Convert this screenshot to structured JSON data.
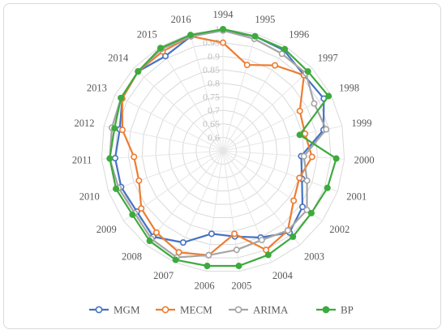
{
  "chart_data": {
    "type": "radar",
    "categories": [
      "1994",
      "1995",
      "1996",
      "1997",
      "1998",
      "1999",
      "2000",
      "2001",
      "2002",
      "2003",
      "2004",
      "2005",
      "2006",
      "2007",
      "2008",
      "2009",
      "2010",
      "2011",
      "2012",
      "2013",
      "2014",
      "2015",
      "2016"
    ],
    "r_ticks": [
      "0.6",
      "0.65",
      "0.7",
      "0.75",
      "0.8",
      "0.85",
      "0.9",
      "0.95",
      "1"
    ],
    "r_range": [
      0.55,
      1.0
    ],
    "grid": true,
    "legend_position": "bottom",
    "series": [
      {
        "name": "MGM",
        "color": "#4472c4",
        "marker": "hollow",
        "values": [
          0.995,
          0.99,
          0.985,
          0.96,
          0.97,
          0.93,
          0.84,
          0.86,
          0.91,
          0.94,
          0.9,
          0.87,
          0.86,
          0.92,
          0.96,
          0.94,
          0.95,
          0.95,
          0.94,
          0.97,
          0.98,
          0.96,
          0.99
        ]
      },
      {
        "name": "MECM",
        "color": "#ed7d31",
        "marker": "hollow",
        "values": [
          0.95,
          0.88,
          0.92,
          0.96,
          0.87,
          0.86,
          0.88,
          0.85,
          0.87,
          0.93,
          0.95,
          0.86,
          0.94,
          0.96,
          0.94,
          0.92,
          0.88,
          0.88,
          0.93,
          0.97,
          0.98,
          0.98,
          0.99
        ]
      },
      {
        "name": "ARIMA",
        "color": "#a5a5a5",
        "marker": "hollow",
        "values": [
          0.995,
          0.98,
          0.97,
          0.97,
          0.93,
          0.94,
          0.85,
          0.88,
          0.93,
          0.93,
          0.91,
          0.92,
          0.94,
          0.98,
          0.97,
          0.95,
          0.96,
          0.97,
          0.97,
          0.975,
          0.98,
          0.99,
          0.99
        ]
      },
      {
        "name": "BP",
        "color": "#3daa3d",
        "marker": "filled",
        "values": [
          1.0,
          0.99,
          0.99,
          0.98,
          0.99,
          0.84,
          0.97,
          0.96,
          0.95,
          0.96,
          0.97,
          0.98,
          0.98,
          0.99,
          0.98,
          0.96,
          0.97,
          0.97,
          0.96,
          0.975,
          0.98,
          0.995,
          0.995
        ]
      }
    ]
  }
}
